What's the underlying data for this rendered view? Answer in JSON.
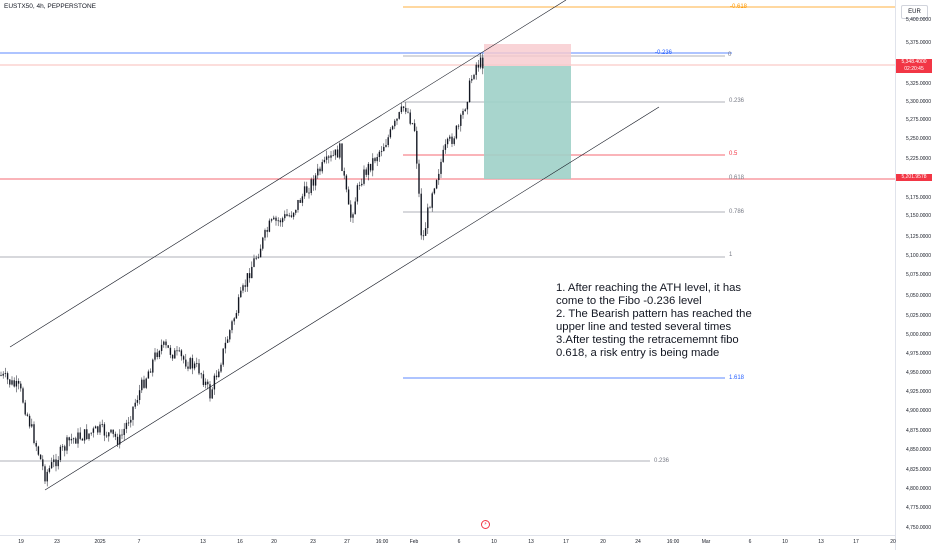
{
  "header": {
    "title": "EUSTX50, 4h, PEPPERSTONE"
  },
  "price_axis": {
    "currency": "EUR",
    "labels": [
      "5,400.0000",
      "5,375.0000",
      "5,325.0000",
      "5,300.0000",
      "5,275.0000",
      "5,250.0000",
      "5,225.0000",
      "5,175.0000",
      "5,150.0000",
      "5,125.0000",
      "5,100.0000",
      "5,075.0000",
      "5,050.0000",
      "5,025.0000",
      "5,000.0000",
      "4,975.0000",
      "4,950.0000",
      "4,925.0000",
      "4,900.0000",
      "4,875.0000",
      "4,850.0000",
      "4,825.0000",
      "4,800.0000",
      "4,775.0000",
      "4,750.0000"
    ],
    "current_price": "5,348.4000",
    "countdown": "02:20:45",
    "marked_price": "5,201.9578",
    "current_color": "#f23645",
    "marked_color": "#f23645"
  },
  "time_axis": {
    "labels": [
      "19",
      "23",
      "2025",
      "7",
      "13",
      "16",
      "20",
      "23",
      "27",
      "16:00",
      "Feb",
      "6",
      "10",
      "13",
      "17",
      "20",
      "24",
      "16:00",
      "Mar",
      "6",
      "10",
      "13",
      "17",
      "20"
    ]
  },
  "fib_levels": {
    "left_set": [
      "-0.236",
      "0",
      "0.236",
      "0.5",
      "0.618",
      "0.786",
      "1"
    ],
    "right_set": [
      "-0.618",
      "1.618",
      "0.236"
    ]
  },
  "annotation": {
    "lines": [
      "1. After reaching the ATH level, it has",
      "come to the Fibo -0.236 level",
      "2. The Bearish pattern has reached the",
      "upper line and tested several times",
      "3.After testing the retracememnt fibo",
      "0.618, a risk entry is being made"
    ]
  },
  "colors": {
    "up": "#089981",
    "down": "#f23645",
    "candle": "#131722",
    "channel": "#131722",
    "fib_blue": "#2962ff",
    "fib_orange": "#ff9800",
    "short_stop": "#f7c9cd",
    "short_target": "#9fd0c8"
  }
}
